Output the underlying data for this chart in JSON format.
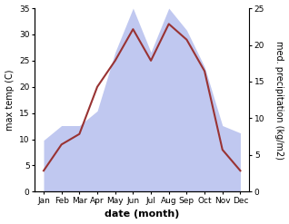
{
  "months": [
    "Jan",
    "Feb",
    "Mar",
    "Apr",
    "May",
    "Jun",
    "Jul",
    "Aug",
    "Sep",
    "Oct",
    "Nov",
    "Dec"
  ],
  "month_indices": [
    0,
    1,
    2,
    3,
    4,
    5,
    6,
    7,
    8,
    9,
    10,
    11
  ],
  "temperature": [
    4,
    9,
    11,
    20,
    25,
    31,
    25,
    32,
    29,
    23,
    8,
    4
  ],
  "precipitation": [
    7,
    9,
    9,
    11,
    19,
    25,
    19,
    25,
    22,
    17,
    9,
    8
  ],
  "temp_color": "#993333",
  "precip_color": "#c0c8f0",
  "temp_ylim": [
    0,
    35
  ],
  "precip_ylim": [
    0,
    25
  ],
  "temp_yticks": [
    0,
    5,
    10,
    15,
    20,
    25,
    30,
    35
  ],
  "precip_yticks": [
    0,
    5,
    10,
    15,
    20,
    25
  ],
  "ylabel_left": "max temp (C)",
  "ylabel_right": "med. precipitation (kg/m2)",
  "xlabel": "date (month)",
  "temp_linewidth": 1.5,
  "background_color": "#ffffff",
  "label_fontsize": 7,
  "tick_fontsize": 6.5
}
